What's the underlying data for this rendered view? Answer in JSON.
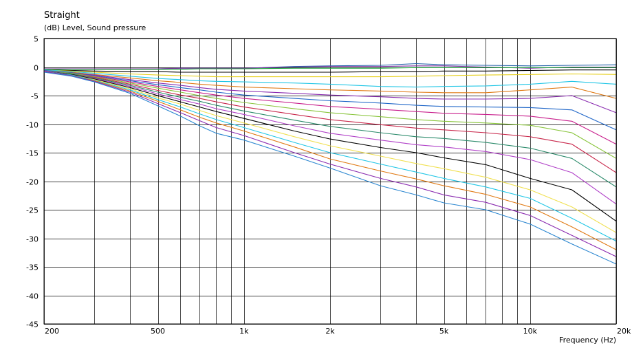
{
  "chart_data": {
    "type": "line",
    "title": "Straight",
    "ylabel": "(dB)  Level, Sound pressure",
    "xlabel": "Frequency  (Hz)",
    "x_scale": "log",
    "xlim": [
      200,
      20000
    ],
    "ylim": [
      -45,
      5
    ],
    "grid": true,
    "legend": "none",
    "y_ticks": [
      5,
      0,
      -5,
      -10,
      -15,
      -20,
      -25,
      -30,
      -35,
      -40,
      -45
    ],
    "x_tick_labels": [
      {
        "value": 200,
        "label": "200"
      },
      {
        "value": 500,
        "label": "500"
      },
      {
        "value": 1000,
        "label": "1k"
      },
      {
        "value": 2000,
        "label": "2k"
      },
      {
        "value": 5000,
        "label": "5k"
      },
      {
        "value": 10000,
        "label": "10k"
      },
      {
        "value": 20000,
        "label": "20k"
      }
    ],
    "x_grid": [
      200,
      300,
      400,
      500,
      600,
      700,
      800,
      900,
      1000,
      2000,
      3000,
      4000,
      5000,
      6000,
      7000,
      8000,
      9000,
      10000,
      20000
    ],
    "x": [
      200,
      250,
      300,
      400,
      500,
      600,
      700,
      800,
      1000,
      1500,
      2000,
      3000,
      4000,
      5000,
      7000,
      10000,
      14000,
      20000
    ],
    "series": [
      {
        "color": "#1f5fa8",
        "values": [
          -0.3,
          -0.3,
          -0.3,
          -0.3,
          -0.3,
          -0.2,
          -0.2,
          -0.2,
          -0.2,
          0.1,
          0.2,
          0.3,
          0.6,
          0.4,
          0.3,
          0.2,
          0.3,
          0.4
        ]
      },
      {
        "color": "#7a2a9a",
        "values": [
          -0.3,
          -0.3,
          -0.3,
          -0.3,
          -0.3,
          -0.2,
          -0.2,
          -0.2,
          -0.2,
          0.0,
          0.1,
          0.1,
          0.2,
          0.2,
          0.0,
          -0.2,
          0.0,
          0.0
        ]
      },
      {
        "color": "#19a33a",
        "values": [
          -0.4,
          -0.4,
          -0.4,
          -0.4,
          -0.4,
          -0.4,
          -0.3,
          -0.3,
          -0.3,
          -0.2,
          -0.2,
          -0.2,
          -0.1,
          -0.1,
          -0.1,
          -0.1,
          -0.1,
          -0.1
        ]
      },
      {
        "color": "#000000",
        "values": [
          -0.5,
          -0.6,
          -0.7,
          -0.8,
          -0.8,
          -0.9,
          -0.9,
          -0.9,
          -0.9,
          -0.9,
          -0.9,
          -0.8,
          -0.8,
          -0.7,
          -0.7,
          -0.6,
          -0.5,
          -0.5
        ]
      },
      {
        "color": "#e6cf1a",
        "values": [
          -0.5,
          -0.7,
          -0.9,
          -1.2,
          -1.4,
          -1.5,
          -1.6,
          -1.7,
          -1.7,
          -1.7,
          -1.7,
          -1.7,
          -1.6,
          -1.5,
          -1.4,
          -1.3,
          -1.2,
          -1.3
        ]
      },
      {
        "color": "#21c6e6",
        "values": [
          -0.5,
          -0.8,
          -1.1,
          -1.6,
          -2.0,
          -2.2,
          -2.4,
          -2.5,
          -2.6,
          -2.8,
          -3.0,
          -3.4,
          -3.5,
          -3.4,
          -3.3,
          -3.0,
          -2.5,
          -3.0
        ]
      },
      {
        "color": "#e07a14",
        "values": [
          -0.6,
          -0.9,
          -1.3,
          -1.9,
          -2.4,
          -2.7,
          -3.0,
          -3.2,
          -3.5,
          -3.8,
          -4.0,
          -4.2,
          -4.4,
          -4.5,
          -4.5,
          -4.0,
          -3.5,
          -5.5
        ]
      },
      {
        "color": "#8a2bb0",
        "values": [
          -0.6,
          -1.0,
          -1.4,
          -2.2,
          -2.8,
          -3.2,
          -3.6,
          -3.9,
          -4.2,
          -4.6,
          -4.9,
          -5.2,
          -5.5,
          -5.6,
          -5.6,
          -5.5,
          -5.0,
          -8.0
        ]
      },
      {
        "color": "#1f66c8",
        "values": [
          -0.6,
          -1.0,
          -1.5,
          -2.4,
          -3.1,
          -3.6,
          -4.0,
          -4.4,
          -4.9,
          -5.5,
          -5.9,
          -6.3,
          -6.7,
          -6.9,
          -7.0,
          -7.1,
          -7.5,
          -11.0
        ]
      },
      {
        "color": "#c81e8c",
        "values": [
          -0.7,
          -1.1,
          -1.6,
          -2.6,
          -3.4,
          -4.0,
          -4.5,
          -4.9,
          -5.5,
          -6.3,
          -6.9,
          -7.4,
          -7.8,
          -8.1,
          -8.3,
          -8.6,
          -9.5,
          -13.5
        ]
      },
      {
        "color": "#88c43a",
        "values": [
          -0.7,
          -1.1,
          -1.7,
          -2.8,
          -3.7,
          -4.4,
          -5.0,
          -5.5,
          -6.2,
          -7.3,
          -8.0,
          -8.7,
          -9.2,
          -9.5,
          -9.8,
          -10.2,
          -11.5,
          -16.0
        ]
      },
      {
        "color": "#c8264a",
        "values": [
          -0.7,
          -1.2,
          -1.8,
          -3.0,
          -4.1,
          -4.9,
          -5.5,
          -6.1,
          -7.0,
          -8.3,
          -9.2,
          -10.1,
          -10.7,
          -11.0,
          -11.5,
          -12.2,
          -13.5,
          -18.5
        ]
      },
      {
        "color": "#2a8a6a",
        "values": [
          -0.7,
          -1.2,
          -1.9,
          -3.2,
          -4.4,
          -5.3,
          -6.0,
          -6.7,
          -7.7,
          -9.3,
          -10.4,
          -11.5,
          -12.2,
          -12.5,
          -13.2,
          -14.2,
          -16.0,
          -21.0
        ]
      },
      {
        "color": "#b040c8",
        "values": [
          -0.7,
          -1.3,
          -2.0,
          -3.4,
          -4.7,
          -5.7,
          -6.5,
          -7.3,
          -8.3,
          -10.3,
          -11.6,
          -12.8,
          -13.6,
          -14.0,
          -14.8,
          -16.2,
          -18.5,
          -24.0
        ]
      },
      {
        "color": "#000000",
        "values": [
          -0.8,
          -1.3,
          -2.1,
          -3.6,
          -5.0,
          -6.1,
          -7.0,
          -7.8,
          -9.0,
          -11.2,
          -12.6,
          -14.1,
          -15.0,
          -15.9,
          -17.1,
          -19.5,
          -21.5,
          -27.0
        ]
      },
      {
        "color": "#f0e050",
        "values": [
          -0.8,
          -1.4,
          -2.2,
          -3.8,
          -5.4,
          -6.5,
          -7.6,
          -8.5,
          -9.8,
          -12.2,
          -13.8,
          -15.6,
          -16.9,
          -17.8,
          -19.3,
          -21.5,
          -24.5,
          -29.0
        ]
      },
      {
        "color": "#21c6e6",
        "values": [
          -0.8,
          -1.4,
          -2.3,
          -4.0,
          -5.7,
          -7.0,
          -8.2,
          -9.2,
          -10.6,
          -13.2,
          -15.0,
          -17.0,
          -18.4,
          -19.5,
          -21.0,
          -23.0,
          -26.5,
          -30.5
        ]
      },
      {
        "color": "#e07a14",
        "values": [
          -0.8,
          -1.5,
          -2.4,
          -4.2,
          -6.0,
          -7.5,
          -8.8,
          -9.8,
          -11.2,
          -14.0,
          -16.1,
          -18.2,
          -19.6,
          -20.8,
          -22.3,
          -24.5,
          -28.0,
          -32.0
        ]
      },
      {
        "color": "#8a2bb0",
        "values": [
          -0.8,
          -1.5,
          -2.5,
          -4.4,
          -6.4,
          -8.0,
          -9.4,
          -10.6,
          -12.0,
          -15.0,
          -17.0,
          -19.5,
          -21.0,
          -22.4,
          -23.7,
          -26.0,
          -29.5,
          -33.2
        ]
      },
      {
        "color": "#2a86d0",
        "values": [
          -0.9,
          -1.6,
          -2.6,
          -4.6,
          -6.8,
          -8.6,
          -10.3,
          -11.6,
          -12.8,
          -15.6,
          -17.7,
          -20.8,
          -22.4,
          -23.8,
          -25.0,
          -27.5,
          -31.0,
          -34.5
        ]
      }
    ]
  }
}
